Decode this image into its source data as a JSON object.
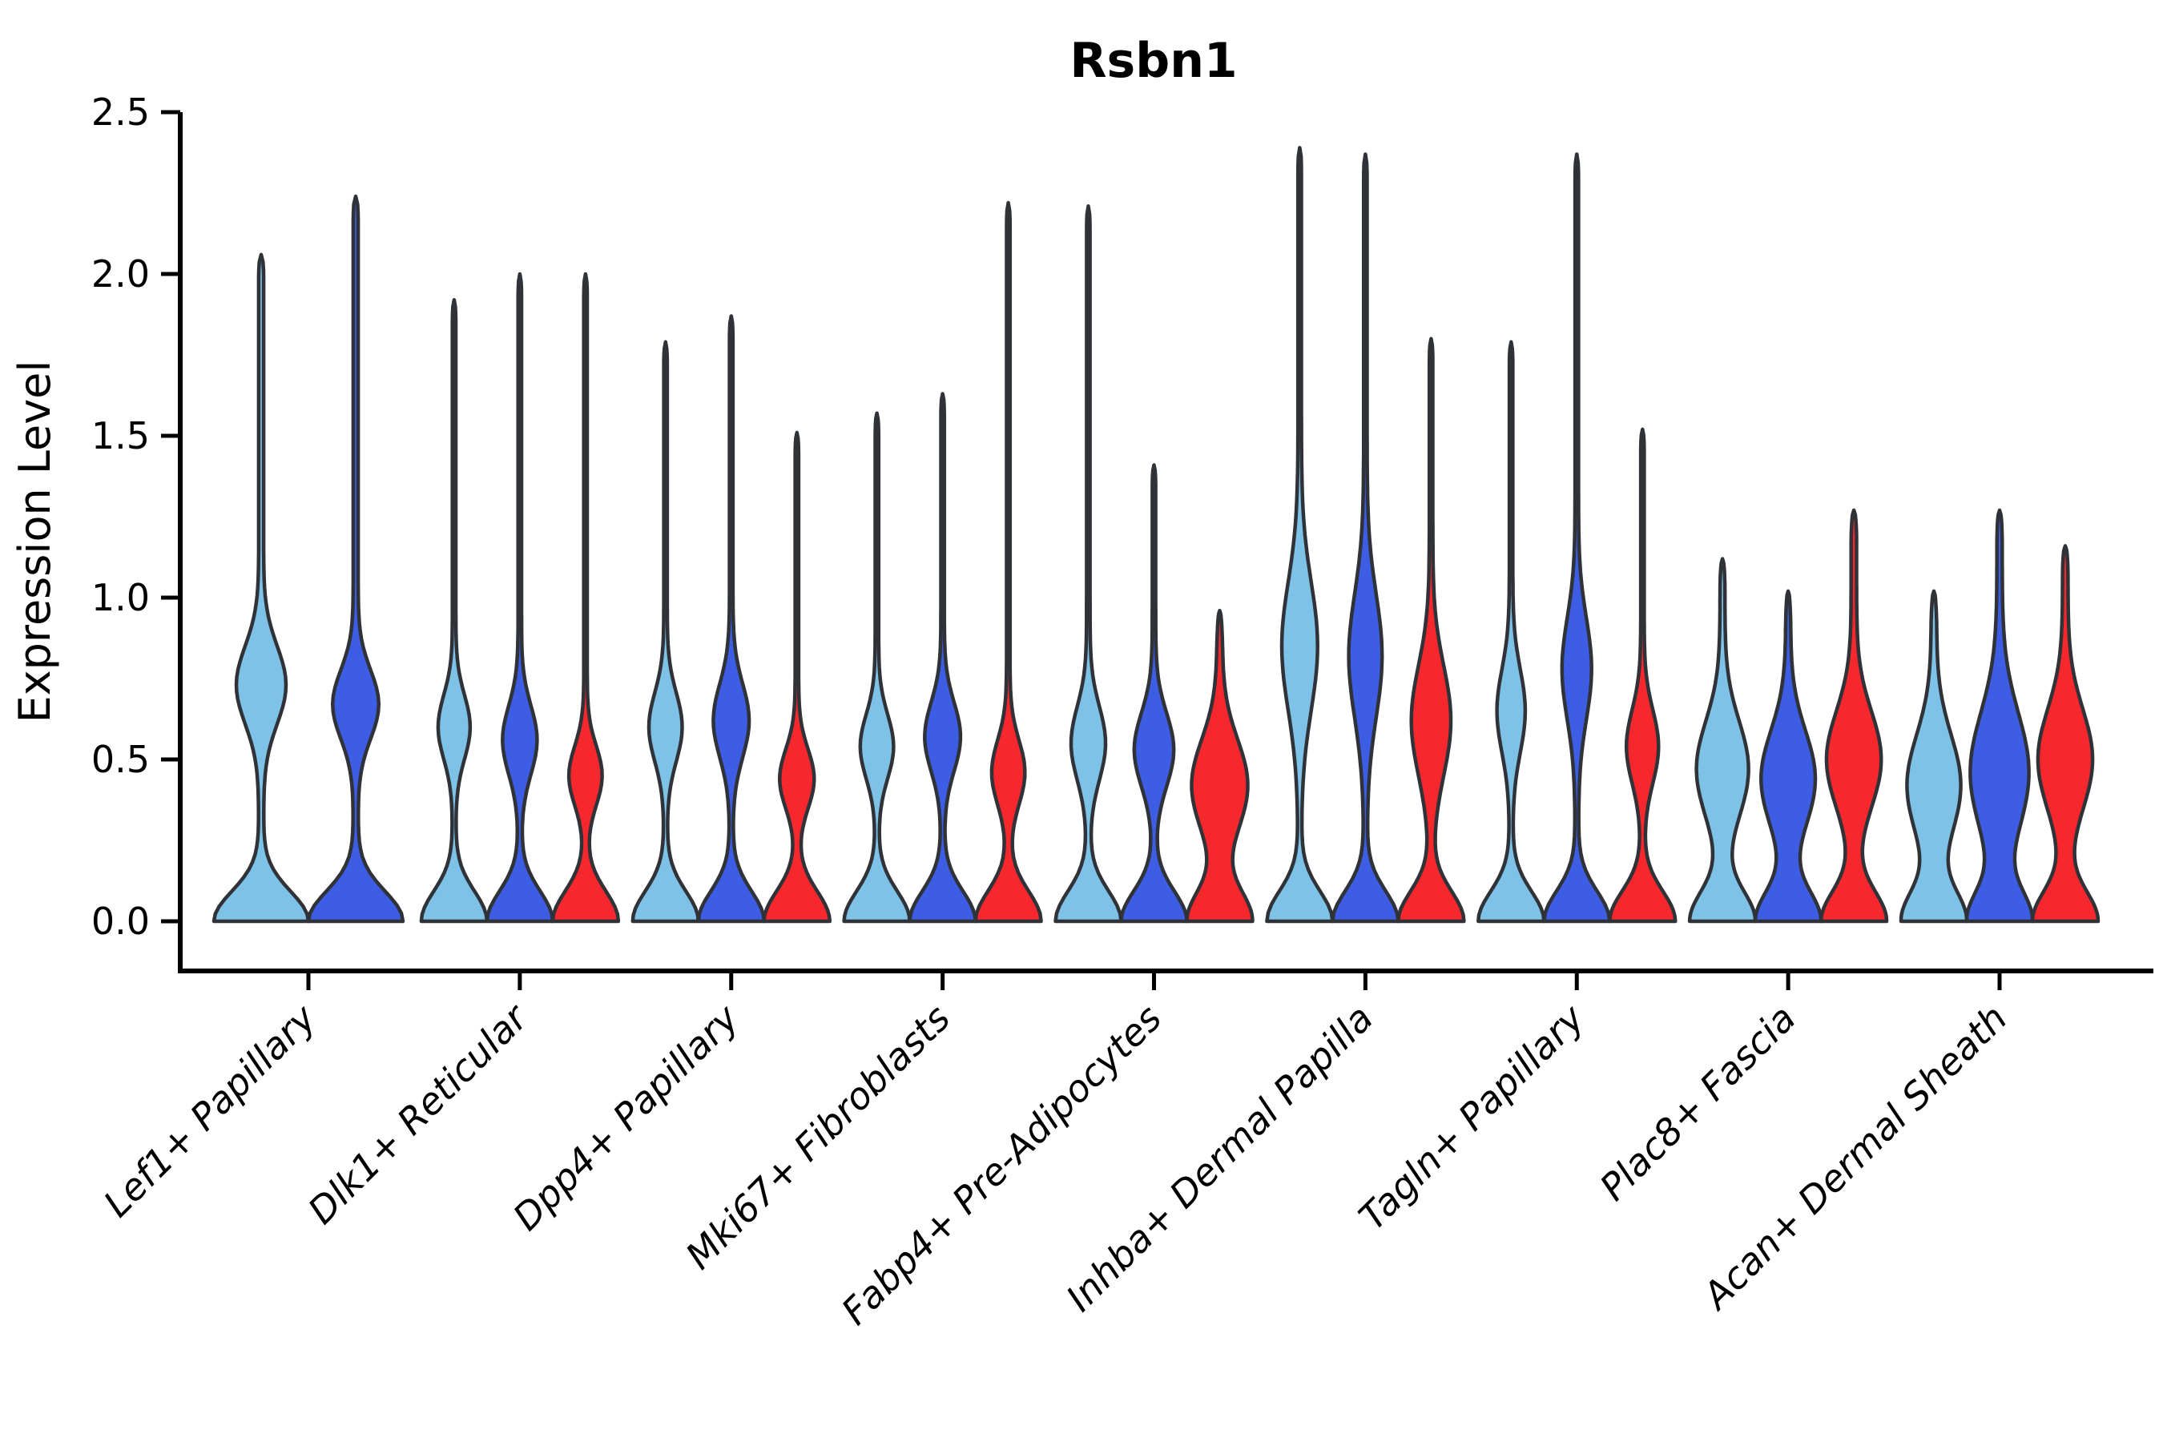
{
  "title": "Rsbn1",
  "axes": {
    "y_label": "Expression Level",
    "y_ticks": [
      "0.0",
      "0.5",
      "1.0",
      "1.5",
      "2.0",
      "2.5"
    ],
    "x_tick_rotation_deg": 45
  },
  "colors": {
    "light_blue": "#7FC2E7",
    "dark_blue": "#3D5DE5",
    "red": "#F7282D",
    "edge": "#2F3338",
    "axis": "#000000",
    "background": "#FFFFFF"
  },
  "chart_data": {
    "type": "violin",
    "title": "Rsbn1",
    "xlabel": "",
    "ylabel": "Expression Level",
    "ylim": [
      0,
      2.5
    ],
    "y_ticks": [
      0.0,
      0.5,
      1.0,
      1.5,
      2.0,
      2.5
    ],
    "grid": false,
    "legend_position": "none",
    "categories": [
      "Lef1+ Papillary",
      "Dlk1+ Reticular",
      "Dpp4+ Papillary",
      "Mki67+ Fibroblasts",
      "Fabp4+ Pre-Adipocytes",
      "Inhba+ Dermal Papilla",
      "Tagln+ Papillary",
      "Plac8+ Fascia",
      "Acan+ Dermal Sheath"
    ],
    "groups": [
      {
        "category": "Lef1+ Papillary",
        "violins": [
          {
            "hue": "light_blue",
            "max": 2.06,
            "bulge_center": 0.73,
            "bulge_amp": 0.5,
            "bulge_sigma": 0.17
          },
          {
            "hue": "dark_blue",
            "max": 2.24,
            "bulge_center": 0.67,
            "bulge_amp": 0.46,
            "bulge_sigma": 0.15
          }
        ]
      },
      {
        "category": "Dlk1+ Reticular",
        "violins": [
          {
            "hue": "light_blue",
            "max": 1.92,
            "bulge_center": 0.6,
            "bulge_amp": 0.46,
            "bulge_sigma": 0.14
          },
          {
            "hue": "dark_blue",
            "max": 2.0,
            "bulge_center": 0.56,
            "bulge_amp": 0.5,
            "bulge_sigma": 0.15
          },
          {
            "hue": "red",
            "max": 2.0,
            "bulge_center": 0.45,
            "bulge_amp": 0.48,
            "bulge_sigma": 0.13
          }
        ]
      },
      {
        "category": "Dpp4+ Papillary",
        "violins": [
          {
            "hue": "light_blue",
            "max": 1.79,
            "bulge_center": 0.6,
            "bulge_amp": 0.48,
            "bulge_sigma": 0.15
          },
          {
            "hue": "dark_blue",
            "max": 1.87,
            "bulge_center": 0.62,
            "bulge_amp": 0.52,
            "bulge_sigma": 0.16
          },
          {
            "hue": "red",
            "max": 1.51,
            "bulge_center": 0.44,
            "bulge_amp": 0.5,
            "bulge_sigma": 0.13
          }
        ]
      },
      {
        "category": "Mki67+ Fibroblasts",
        "violins": [
          {
            "hue": "light_blue",
            "max": 1.57,
            "bulge_center": 0.54,
            "bulge_amp": 0.48,
            "bulge_sigma": 0.14
          },
          {
            "hue": "dark_blue",
            "max": 1.63,
            "bulge_center": 0.57,
            "bulge_amp": 0.52,
            "bulge_sigma": 0.15
          },
          {
            "hue": "red",
            "max": 2.22,
            "bulge_center": 0.46,
            "bulge_amp": 0.48,
            "bulge_sigma": 0.14
          }
        ]
      },
      {
        "category": "Fabp4+ Pre-Adipocytes",
        "violins": [
          {
            "hue": "light_blue",
            "max": 2.21,
            "bulge_center": 0.55,
            "bulge_amp": 0.5,
            "bulge_sigma": 0.16
          },
          {
            "hue": "dark_blue",
            "max": 1.41,
            "bulge_center": 0.53,
            "bulge_amp": 0.58,
            "bulge_sigma": 0.16
          },
          {
            "hue": "red",
            "max": 0.96,
            "bulge_center": 0.42,
            "bulge_amp": 0.85,
            "bulge_sigma": 0.2,
            "stem": 0.09,
            "tip": 0.14
          }
        ]
      },
      {
        "category": "Inhba+ Dermal Papilla",
        "violins": [
          {
            "hue": "light_blue",
            "max": 2.39,
            "bulge_center": 0.85,
            "bulge_amp": 0.52,
            "bulge_sigma": 0.28
          },
          {
            "hue": "dark_blue",
            "max": 2.37,
            "bulge_center": 0.82,
            "bulge_amp": 0.48,
            "bulge_sigma": 0.27
          },
          {
            "hue": "red",
            "max": 1.8,
            "bulge_center": 0.62,
            "bulge_amp": 0.58,
            "bulge_sigma": 0.24
          }
        ]
      },
      {
        "category": "Tagln+ Papillary",
        "violins": [
          {
            "hue": "light_blue",
            "max": 1.79,
            "bulge_center": 0.65,
            "bulge_amp": 0.4,
            "bulge_sigma": 0.18
          },
          {
            "hue": "dark_blue",
            "max": 2.37,
            "bulge_center": 0.78,
            "bulge_amp": 0.42,
            "bulge_sigma": 0.22
          },
          {
            "hue": "red",
            "max": 1.52,
            "bulge_center": 0.54,
            "bulge_amp": 0.46,
            "bulge_sigma": 0.16
          }
        ]
      },
      {
        "category": "Plac8+ Fascia",
        "violins": [
          {
            "hue": "light_blue",
            "max": 1.12,
            "bulge_center": 0.47,
            "bulge_amp": 0.78,
            "bulge_sigma": 0.21,
            "stem": 0.08,
            "tip": 0.1
          },
          {
            "hue": "dark_blue",
            "max": 1.02,
            "bulge_center": 0.44,
            "bulge_amp": 0.82,
            "bulge_sigma": 0.21,
            "stem": 0.08,
            "tip": 0.12
          },
          {
            "hue": "red",
            "max": 1.27,
            "bulge_center": 0.5,
            "bulge_amp": 0.82,
            "bulge_sigma": 0.21,
            "stem": 0.09,
            "tip": 0.1
          }
        ]
      },
      {
        "category": "Acan+ Dermal Sheath",
        "violins": [
          {
            "hue": "light_blue",
            "max": 1.02,
            "bulge_center": 0.42,
            "bulge_amp": 0.82,
            "bulge_sigma": 0.22,
            "stem": 0.09,
            "tip": 0.12
          },
          {
            "hue": "dark_blue",
            "max": 1.27,
            "bulge_center": 0.46,
            "bulge_amp": 0.92,
            "bulge_sigma": 0.26,
            "stem": 0.09,
            "tip": 0.1
          },
          {
            "hue": "red",
            "max": 1.16,
            "bulge_center": 0.5,
            "bulge_amp": 0.82,
            "bulge_sigma": 0.22,
            "stem": 0.09,
            "tip": 0.1
          }
        ]
      }
    ]
  }
}
